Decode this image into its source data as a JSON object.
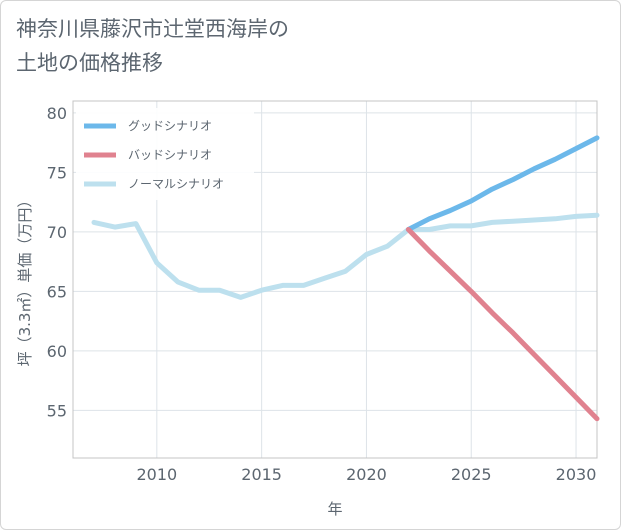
{
  "title": {
    "line1": "神奈川県藤沢市辻堂西海岸の",
    "line2": "土地の価格推移"
  },
  "chart_data": {
    "type": "line",
    "title": "神奈川県藤沢市辻堂西海岸の土地の価格推移",
    "xlabel": "年",
    "ylabel": "坪（3.3㎡）単価（万円）",
    "xlim": [
      2006,
      2031
    ],
    "ylim": [
      51,
      81
    ],
    "x_ticks": [
      2010,
      2015,
      2020,
      2025,
      2030
    ],
    "y_ticks": [
      55,
      60,
      65,
      70,
      75,
      80
    ],
    "grid": true,
    "legend_position": "top-left",
    "series": [
      {
        "name": "グッドシナリオ",
        "color": "#6cb8ea",
        "x": [
          2022,
          2023,
          2024,
          2025,
          2026,
          2027,
          2028,
          2029,
          2030,
          2031
        ],
        "y": [
          70.2,
          71.1,
          71.8,
          72.6,
          73.6,
          74.4,
          75.3,
          76.1,
          77.0,
          77.9
        ]
      },
      {
        "name": "バッドシナリオ",
        "color": "#e0828f",
        "x": [
          2022,
          2023,
          2024,
          2025,
          2026,
          2027,
          2028,
          2029,
          2030,
          2031
        ],
        "y": [
          70.2,
          68.4,
          66.7,
          65.0,
          63.2,
          61.5,
          59.7,
          57.9,
          56.1,
          54.3
        ]
      },
      {
        "name": "ノーマルシナリオ",
        "color": "#bde0ee",
        "x": [
          2007,
          2008,
          2009,
          2010,
          2011,
          2012,
          2013,
          2014,
          2015,
          2016,
          2017,
          2018,
          2019,
          2020,
          2021,
          2022,
          2023,
          2024,
          2025,
          2026,
          2027,
          2028,
          2029,
          2030,
          2031
        ],
        "y": [
          70.8,
          70.4,
          70.7,
          67.4,
          65.8,
          65.1,
          65.1,
          64.5,
          65.1,
          65.5,
          65.5,
          66.1,
          66.7,
          68.1,
          68.8,
          70.2,
          70.2,
          70.5,
          70.5,
          70.8,
          70.9,
          71.0,
          71.1,
          71.3,
          71.4
        ]
      }
    ]
  }
}
